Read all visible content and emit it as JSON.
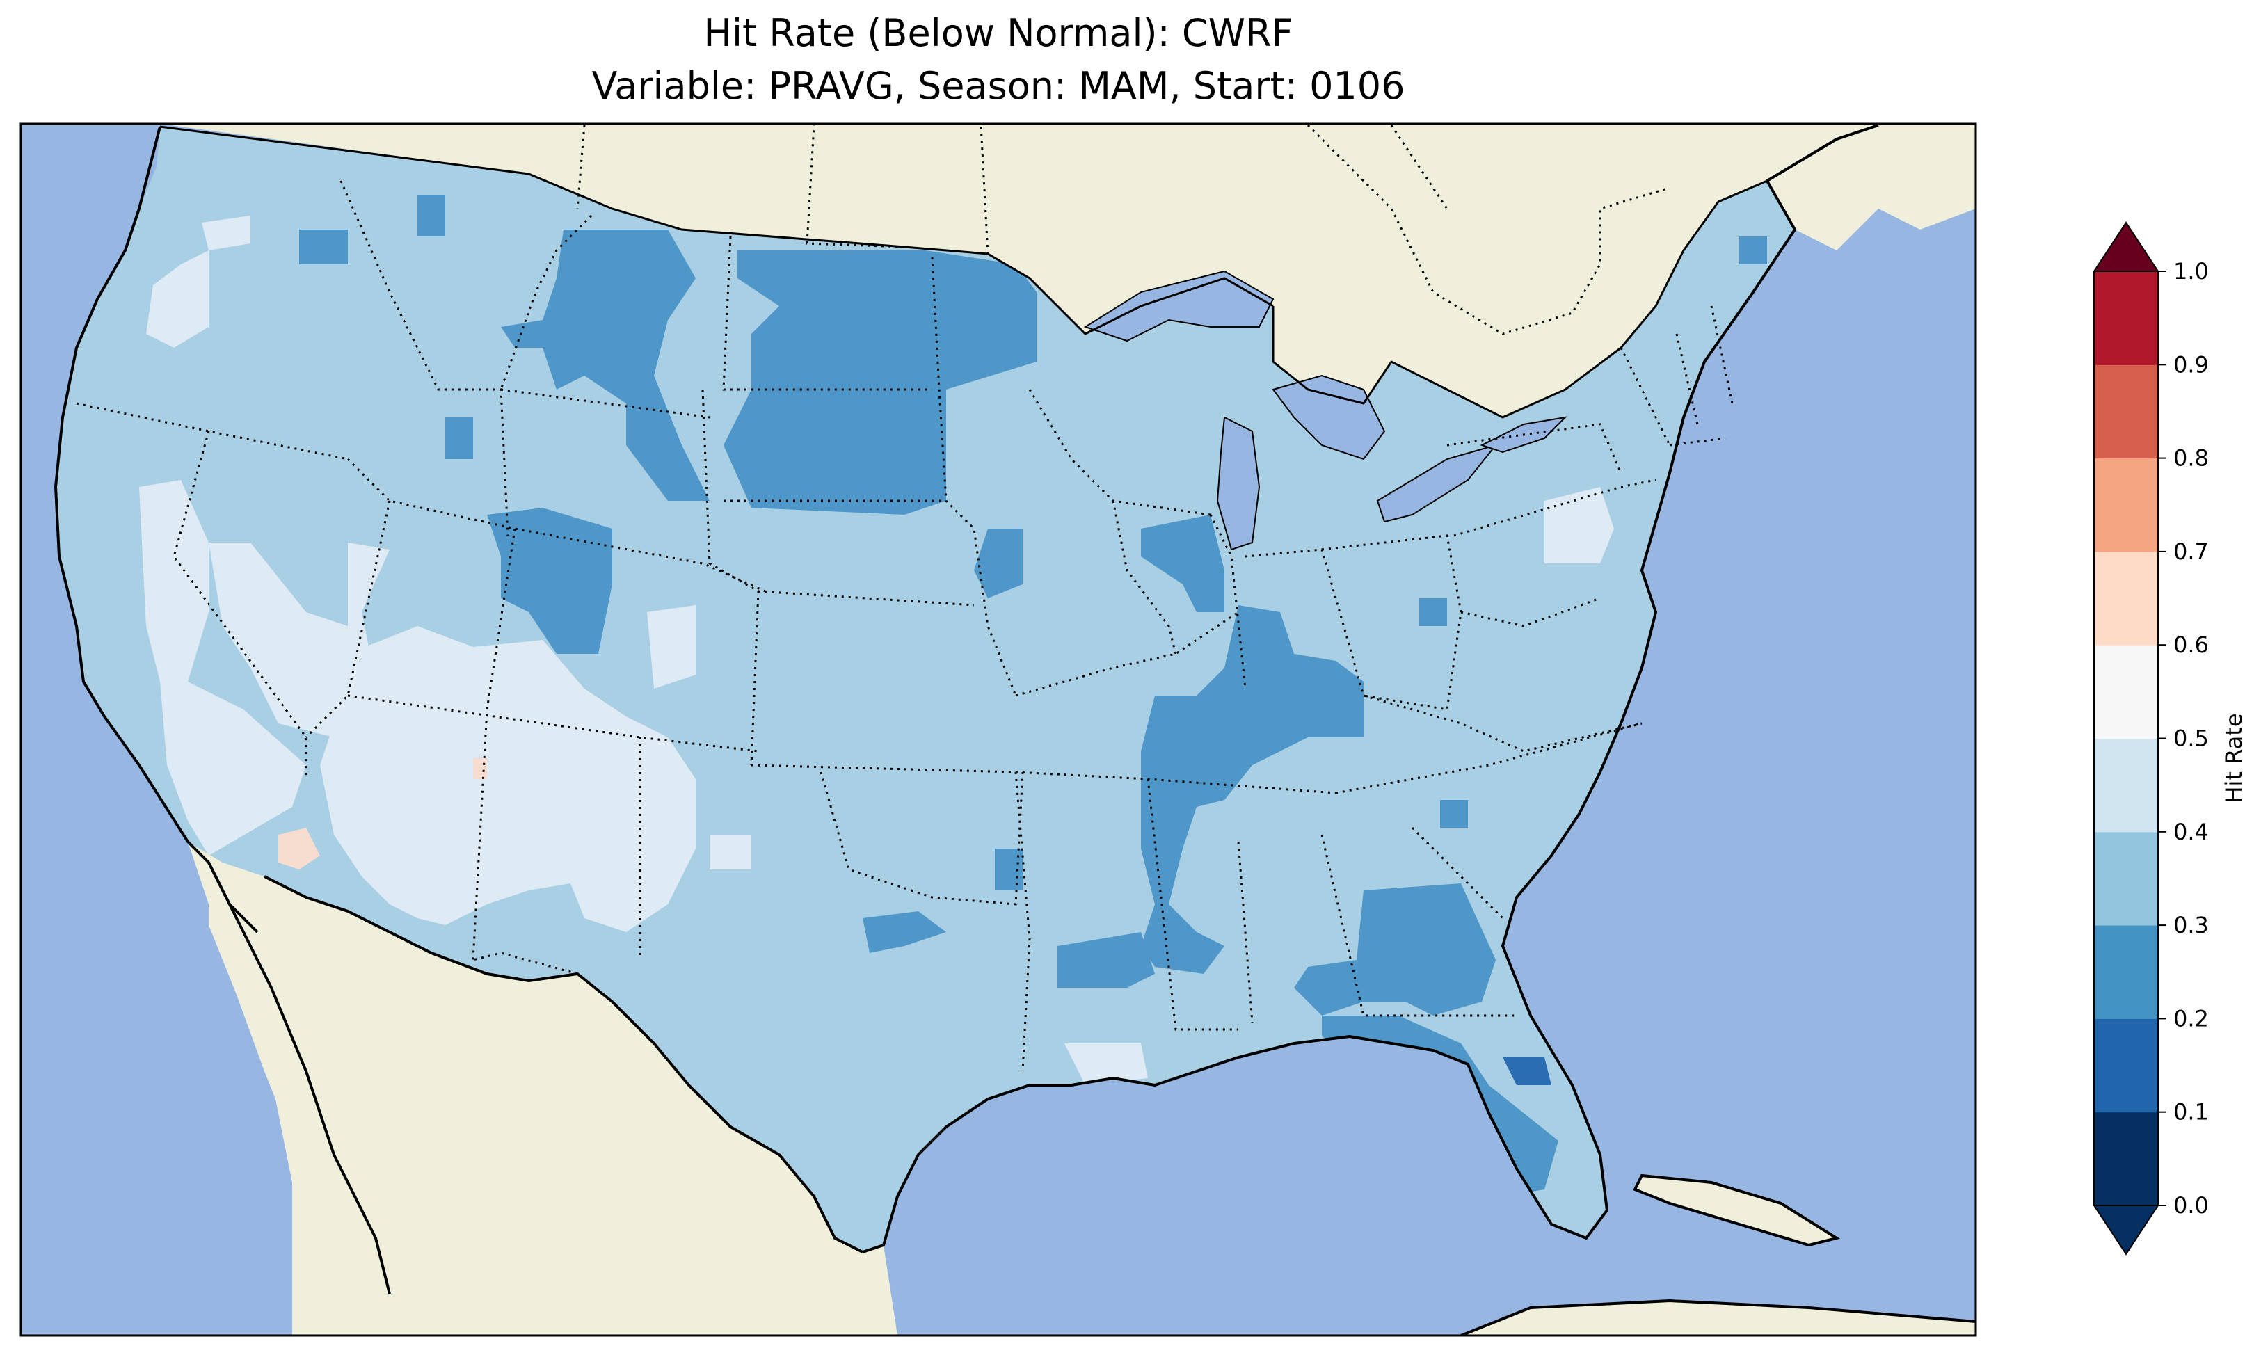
{
  "title": {
    "line1": "Hit Rate (Below Normal): CWRF",
    "line2": "Variable: PRAVG, Season: MAM, Start: 0106"
  },
  "colorbar": {
    "label": "Hit Rate",
    "ticks": [
      "0.0",
      "0.1",
      "0.2",
      "0.3",
      "0.4",
      "0.5",
      "0.6",
      "0.7",
      "0.8",
      "0.9",
      "1.0"
    ],
    "bins": [
      {
        "range": "0.0-0.1",
        "color": "#053061"
      },
      {
        "range": "0.1-0.2",
        "color": "#2166ac"
      },
      {
        "range": "0.2-0.3",
        "color": "#4393c3"
      },
      {
        "range": "0.3-0.4",
        "color": "#92c5de"
      },
      {
        "range": "0.4-0.5",
        "color": "#d1e5f0"
      },
      {
        "range": "0.5-0.6",
        "color": "#f7f7f7"
      },
      {
        "range": "0.6-0.7",
        "color": "#fddbc7"
      },
      {
        "range": "0.7-0.8",
        "color": "#f4a582"
      },
      {
        "range": "0.8-0.9",
        "color": "#d6604d"
      },
      {
        "range": "0.9-1.0",
        "color": "#b2182b"
      }
    ],
    "under_color": "#053061",
    "over_color": "#67001f"
  },
  "map": {
    "ocean_color": "#97b6e1",
    "land_color": "#efefdb",
    "field_colors": {
      "c2": "#4f97c8",
      "c3": "#a8cfe3",
      "c4": "#deebf4",
      "c1": "#2a6db3",
      "c6": "#f7dcd0"
    }
  }
}
